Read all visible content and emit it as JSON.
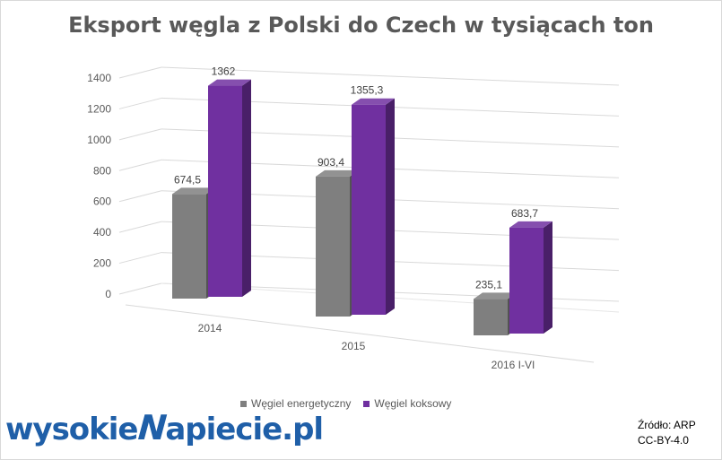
{
  "chart_data": {
    "type": "bar",
    "title": "Eksport węgla z Polski do Czech w tysiącach ton",
    "categories": [
      "2014",
      "2015",
      "2016 I-VI"
    ],
    "series": [
      {
        "name": "Węgiel energetyczny",
        "values": [
          674.5,
          903.4,
          235.1
        ],
        "labels": [
          "674,5",
          "903,4",
          "235,1"
        ],
        "color": "#7f7f7f"
      },
      {
        "name": "Węgiel koksowy",
        "values": [
          1362,
          1355.3,
          683.7
        ],
        "labels": [
          "1362",
          "1355,3",
          "683,7"
        ],
        "color": "#7030a0"
      }
    ],
    "yticks": [
      "0",
      "200",
      "400",
      "600",
      "800",
      "1000",
      "1200",
      "1400"
    ],
    "ylim": [
      0,
      1400
    ],
    "grid": true,
    "legend_position": "bottom",
    "style": "3d-clustered-column"
  },
  "branding": {
    "logo_part1": "wysokie",
    "logo_part2": "apiecie.pl"
  },
  "source": {
    "line1": "Źródło: ARP",
    "line2": "CC-BY-4.0"
  }
}
